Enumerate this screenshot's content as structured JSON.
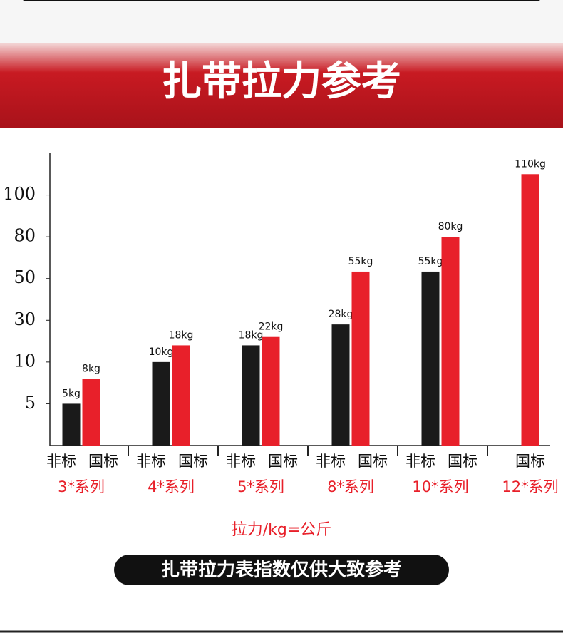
{
  "chart_data": {
    "type": "bar",
    "title": "扎带拉力参考",
    "note": "拉力/kg=公斤",
    "footer": "扎带拉力表指数仅供大致参考",
    "categories": [
      "3*系列",
      "4*系列",
      "5*系列",
      "8*系列",
      "10*系列",
      "12*系列"
    ],
    "series": [
      {
        "name": "非标",
        "color": "#1a1a1a",
        "values": [
          5,
          10,
          18,
          28,
          55,
          null
        ],
        "value_labels": [
          "5kg",
          "10kg",
          "18kg",
          "28kg",
          "55kg",
          null
        ]
      },
      {
        "name": "国标",
        "color": "#e8202a",
        "values": [
          8,
          18,
          22,
          55,
          80,
          110
        ],
        "value_labels": [
          "8kg",
          "18kg",
          "22kg",
          "55kg",
          "80kg",
          "110kg"
        ]
      }
    ],
    "scale": "piecewise",
    "ylim": [
      0,
      120
    ],
    "yticks": [
      5,
      10,
      30,
      50,
      80,
      100
    ]
  }
}
